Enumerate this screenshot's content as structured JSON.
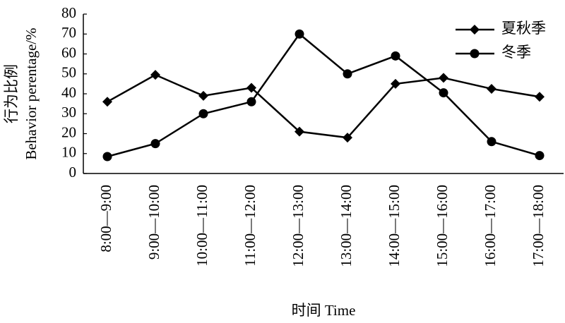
{
  "chart_data": {
    "type": "line",
    "categories": [
      "8:00—9:00",
      "9:00—10:00",
      "10:00—11:00",
      "11:00—12:00",
      "12:00—13:00",
      "13:00—14:00",
      "14:00—15:00",
      "15:00—16:00",
      "16:00—17:00",
      "17:00—18:00"
    ],
    "series": [
      {
        "name": "夏秋季",
        "color": "#000000",
        "marker": "diamond",
        "values": [
          36,
          49.5,
          39,
          43,
          21,
          18,
          45,
          48,
          42.5,
          38.5
        ]
      },
      {
        "name": "冬季",
        "color": "#000000",
        "marker": "circle",
        "values": [
          8.5,
          15,
          30,
          36,
          70,
          50,
          59,
          40.5,
          16,
          9
        ]
      }
    ],
    "y_label_cn": "行为比例",
    "y_label_en": "Behavior perentage/%",
    "x_label": "时间 Time",
    "ylim": [
      0,
      80
    ],
    "yticks": [
      0,
      10,
      20,
      30,
      40,
      50,
      60,
      70,
      80
    ],
    "grid": false,
    "legend": "upper right"
  }
}
